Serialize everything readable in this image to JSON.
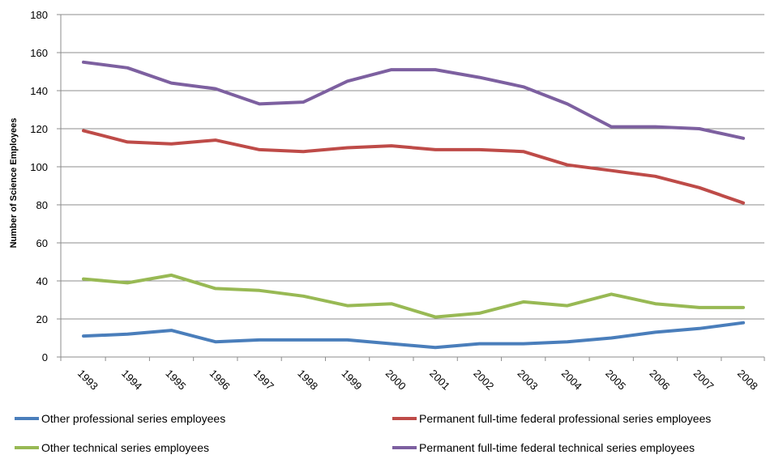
{
  "chart_data": {
    "type": "line",
    "title": "",
    "xlabel": "",
    "ylabel": "Number of Science Employees",
    "ylim": [
      0,
      180
    ],
    "yticks": [
      0,
      20,
      40,
      60,
      80,
      100,
      120,
      140,
      160,
      180
    ],
    "grid": "horizontal",
    "legend_position": "bottom",
    "categories": [
      "1993",
      "1994",
      "1995",
      "1996",
      "1997",
      "1998",
      "1999",
      "2000",
      "2001",
      "2002",
      "2003",
      "2004",
      "2005",
      "2006",
      "2007",
      "2008"
    ],
    "series": [
      {
        "name": "Other professional series employees",
        "color": "#4a7ebb",
        "values": [
          11,
          12,
          14,
          8,
          9,
          9,
          9,
          7,
          5,
          7,
          7,
          8,
          10,
          13,
          15,
          18
        ]
      },
      {
        "name": "Permanent full-time federal professional series employees",
        "color": "#be4b48",
        "values": [
          119,
          113,
          112,
          114,
          109,
          108,
          110,
          111,
          109,
          109,
          108,
          101,
          98,
          95,
          89,
          81
        ]
      },
      {
        "name": "Other technical series employees",
        "color": "#98b954",
        "values": [
          41,
          39,
          43,
          36,
          35,
          32,
          27,
          28,
          21,
          23,
          29,
          27,
          33,
          28,
          26,
          26
        ]
      },
      {
        "name": "Permanent full-time federal technical series employees",
        "color": "#7d60a0",
        "values": [
          155,
          152,
          144,
          141,
          133,
          134,
          145,
          151,
          151,
          147,
          142,
          133,
          121,
          121,
          120,
          115
        ]
      }
    ]
  }
}
